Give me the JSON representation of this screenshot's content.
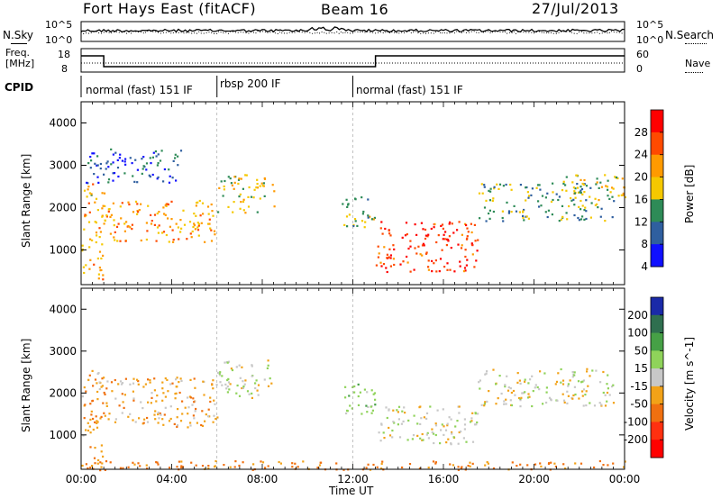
{
  "header": {
    "station": "Fort Hays East (fitACF)",
    "beam": "Beam 16",
    "date": "27/Jul/2013"
  },
  "top_panel": {
    "nsky_label": "N.Sky",
    "nsky_ticks": [
      "10^5",
      "10^0"
    ],
    "nsearch_label": "N.Search",
    "nsearch_ticks": [
      "10^5",
      "10^0"
    ],
    "freq_label_1": "Freq.",
    "freq_label_2": "[MHz]",
    "freq_ticks": [
      "18",
      "8"
    ],
    "nave_label": "Nave",
    "nave_ticks": [
      "60",
      "0"
    ],
    "cpid_label": "CPID",
    "cpid_segments": [
      {
        "label": "normal (fast) 151 IF",
        "start_h": 0,
        "end_h": 6
      },
      {
        "label": "rbsp 200 IF",
        "start_h": 6,
        "end_h": 12
      },
      {
        "label": "normal (fast) 151 IF",
        "start_h": 12,
        "end_h": 24
      }
    ]
  },
  "power_panel": {
    "ylabel": "Slant Range [km]",
    "colorbar_label": "Power [dB]",
    "colorbar_ticks": [
      "28",
      "24",
      "20",
      "16",
      "12",
      "8",
      "4"
    ],
    "colors": [
      "#ff0000",
      "#ff4a00",
      "#ff9a00",
      "#f5c800",
      "#2e8b57",
      "#2f5f9f",
      "#1010ff"
    ]
  },
  "velocity_panel": {
    "ylabel": "Slant Range [km]",
    "colorbar_label": "Velocity [m s^-1]",
    "colorbar_ticks": [
      "200",
      "100",
      "50",
      "15",
      "-15",
      "-50",
      "-100",
      "-200"
    ],
    "colors": [
      "#1a2aa8",
      "#2f6f4f",
      "#46a046",
      "#8fd35a",
      "#c8c8c8",
      "#f2a218",
      "#f07010",
      "#ff3010",
      "#ff0000"
    ]
  },
  "chart_data": [
    {
      "type": "heatmap",
      "title": "Power",
      "xlabel": "Time UT",
      "ylabel": "Slant Range [km]",
      "x_ticks": [
        "00:00",
        "04:00",
        "08:00",
        "12:00",
        "16:00",
        "20:00",
        "00:00"
      ],
      "x_range_hours": [
        0,
        24
      ],
      "y_ticks": [
        1000,
        2000,
        3000,
        4000
      ],
      "ylim": [
        180,
        4500
      ],
      "colorbar_label": "Power [dB]",
      "colorbar_ticks": [
        28,
        24,
        20,
        16,
        12,
        8,
        4
      ],
      "scatter_regions": [
        {
          "t": [
            0.0,
            1.0
          ],
          "range": [
            300,
            2600
          ],
          "power": 18
        },
        {
          "t": [
            0.2,
            4.5
          ],
          "range": [
            2600,
            3400
          ],
          "power": 8
        },
        {
          "t": [
            1.0,
            6.0
          ],
          "range": [
            1200,
            2200
          ],
          "power": 20
        },
        {
          "t": [
            6.0,
            8.5
          ],
          "range": [
            1900,
            2800
          ],
          "power": 16
        },
        {
          "t": [
            11.5,
            13.0
          ],
          "range": [
            1500,
            2300
          ],
          "power": 14
        },
        {
          "t": [
            13.0,
            17.5
          ],
          "range": [
            500,
            1700
          ],
          "power": 26
        },
        {
          "t": [
            17.5,
            23.5
          ],
          "range": [
            1700,
            2600
          ],
          "power": 12
        },
        {
          "t": [
            21.0,
            24.0
          ],
          "range": [
            2200,
            2800
          ],
          "power": 16
        }
      ]
    },
    {
      "type": "heatmap",
      "title": "Velocity",
      "xlabel": "Time UT",
      "ylabel": "Slant Range [km]",
      "x_ticks": [
        "00:00",
        "04:00",
        "08:00",
        "12:00",
        "16:00",
        "20:00",
        "00:00"
      ],
      "x_range_hours": [
        0,
        24
      ],
      "y_ticks": [
        1000,
        2000,
        3000,
        4000
      ],
      "ylim": [
        180,
        4500
      ],
      "colorbar_label": "Velocity [m s^-1]",
      "colorbar_ticks": [
        200,
        100,
        50,
        15,
        -15,
        -50,
        -100,
        -200
      ],
      "scatter_regions": [
        {
          "t": [
            0.0,
            1.0
          ],
          "range": [
            300,
            2600
          ],
          "velocity": -40
        },
        {
          "t": [
            1.0,
            6.0
          ],
          "range": [
            1200,
            2400
          ],
          "velocity": -30
        },
        {
          "t": [
            6.0,
            8.5
          ],
          "range": [
            1900,
            2800
          ],
          "velocity": 0
        },
        {
          "t": [
            11.5,
            13.0
          ],
          "range": [
            1500,
            2300
          ],
          "velocity": 30
        },
        {
          "t": [
            13.0,
            17.5
          ],
          "range": [
            800,
            1700
          ],
          "velocity": 0
        },
        {
          "t": [
            17.5,
            23.5
          ],
          "range": [
            1700,
            2600
          ],
          "velocity": 0
        },
        {
          "t": [
            0.0,
            24.0
          ],
          "range": [
            180,
            400
          ],
          "velocity": -60
        }
      ]
    }
  ]
}
